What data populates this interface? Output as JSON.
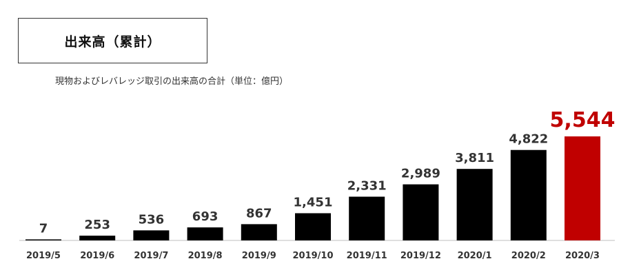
{
  "title": "出来高（累計）",
  "subtitle": "現物およびレバレッジ取引の出来高の合計（単位：億円）",
  "colors": {
    "bar": "#000000",
    "highlight": "#c00000",
    "label": "#333333",
    "highlight_label": "#c00000"
  },
  "chart_data": {
    "type": "bar",
    "categories": [
      "2019/5",
      "2019/6",
      "2019/7",
      "2019/8",
      "2019/9",
      "2019/10",
      "2019/11",
      "2019/12",
      "2020/1",
      "2020/2",
      "2020/3"
    ],
    "values": [
      7,
      253,
      536,
      693,
      867,
      1451,
      2331,
      2989,
      3811,
      4822,
      5544
    ],
    "data_labels": [
      "7",
      "253",
      "536",
      "693",
      "867",
      "1,451",
      "2,331",
      "2,989",
      "3,811",
      "4,822",
      "5,544"
    ],
    "highlight_index": 10,
    "ylim": [
      0,
      5544
    ],
    "grid": false,
    "legend": "none"
  }
}
